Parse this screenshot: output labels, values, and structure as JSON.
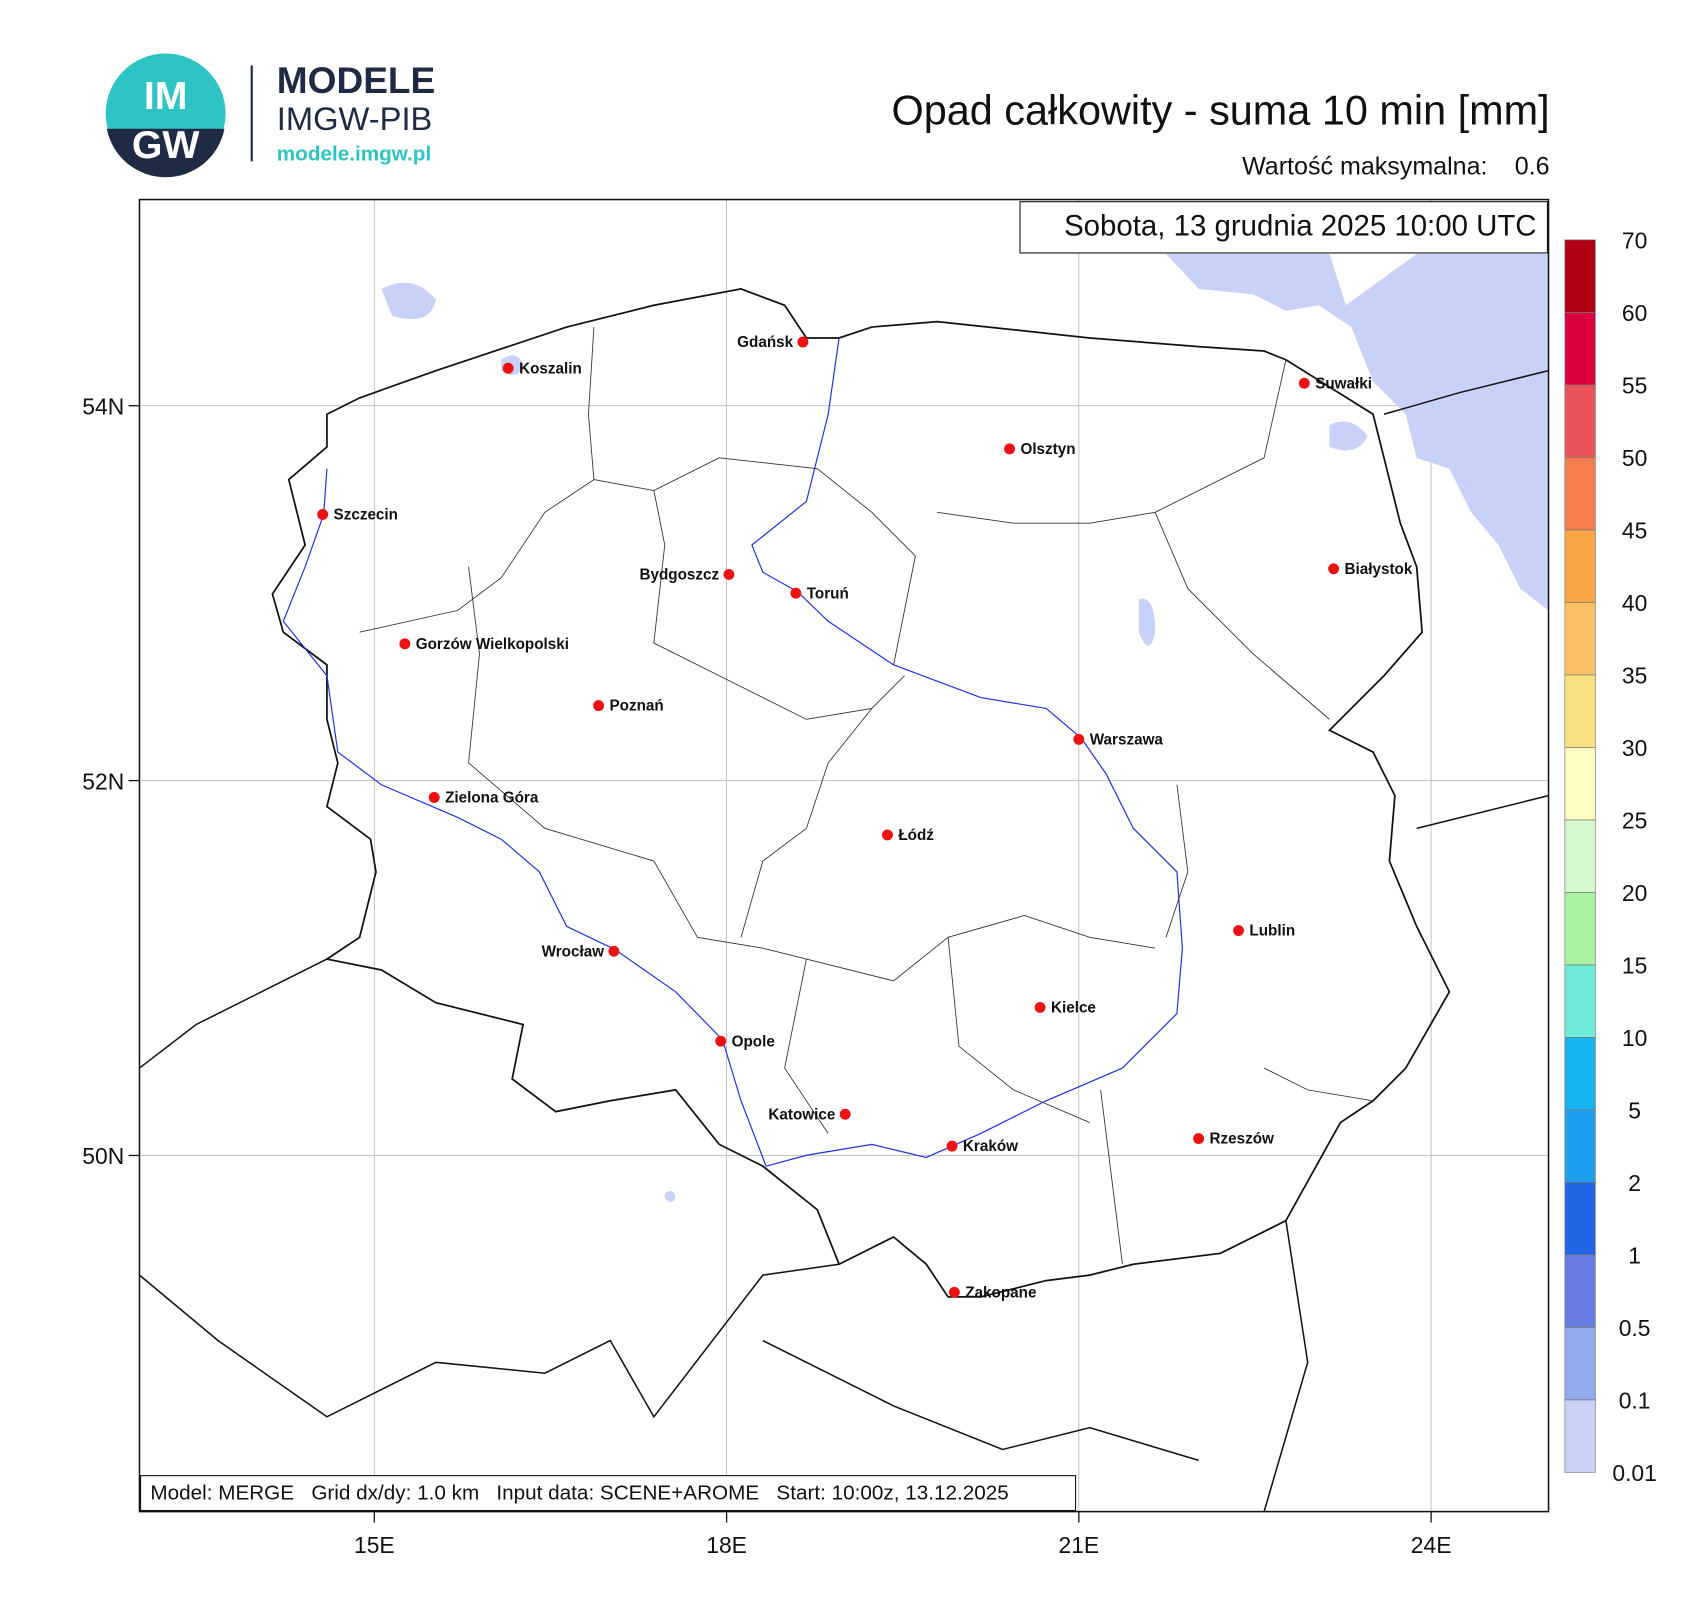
{
  "header": {
    "logo_top": "IM",
    "logo_bottom": "GW",
    "brand": "MODELE",
    "brand_sub": "IMGW-PIB",
    "url": "modele.imgw.pl",
    "title": "Opad całkowity - suma 10 min [mm]",
    "max_label": "Wartość maksymalna:",
    "max_value": 0.6
  },
  "map": {
    "date": "Sobota, 13 grudnia 2025 10:00 UTC",
    "footer": "Model: MERGE   Grid dx/dy: 1.0 km   Input data: SCENE+AROME   Start: 10:00z, 13.12.2025",
    "xlim": [
      13,
      25
    ],
    "ylim": [
      48.1,
      55.1
    ],
    "xticks": [
      {
        "value": 15,
        "label": "15E"
      },
      {
        "value": 18,
        "label": "18E"
      },
      {
        "value": 21,
        "label": "21E"
      },
      {
        "value": 24,
        "label": "24E"
      }
    ],
    "yticks": [
      {
        "value": 54,
        "label": "54N"
      },
      {
        "value": 52,
        "label": "52N"
      },
      {
        "value": 50,
        "label": "50N"
      }
    ],
    "grid": true,
    "cities": [
      {
        "name": "Gdańsk",
        "lon": 18.65,
        "lat": 54.34,
        "label_side": "left"
      },
      {
        "name": "Koszalin",
        "lon": 16.14,
        "lat": 54.2
      },
      {
        "name": "Suwałki",
        "lon": 22.92,
        "lat": 54.12
      },
      {
        "name": "Olsztyn",
        "lon": 20.41,
        "lat": 53.77
      },
      {
        "name": "Szczecin",
        "lon": 14.56,
        "lat": 53.42
      },
      {
        "name": "Białystok",
        "lon": 23.17,
        "lat": 53.13
      },
      {
        "name": "Bydgoszcz",
        "lon": 18.02,
        "lat": 53.1,
        "label_side": "left"
      },
      {
        "name": "Toruń",
        "lon": 18.59,
        "lat": 53.0
      },
      {
        "name": "Gorzów Wielkopolski",
        "lon": 15.26,
        "lat": 52.73
      },
      {
        "name": "Poznań",
        "lon": 16.91,
        "lat": 52.4
      },
      {
        "name": "Warszawa",
        "lon": 21.0,
        "lat": 52.22
      },
      {
        "name": "Zielona Góra",
        "lon": 15.51,
        "lat": 51.91
      },
      {
        "name": "Łódź",
        "lon": 19.37,
        "lat": 51.71
      },
      {
        "name": "Lublin",
        "lon": 22.36,
        "lat": 51.2
      },
      {
        "name": "Wrocław",
        "lon": 17.04,
        "lat": 51.09,
        "label_side": "left"
      },
      {
        "name": "Kielce",
        "lon": 20.67,
        "lat": 50.79
      },
      {
        "name": "Opole",
        "lon": 17.95,
        "lat": 50.61
      },
      {
        "name": "Katowice",
        "lon": 19.01,
        "lat": 50.22,
        "label_side": "left"
      },
      {
        "name": "Rzeszów",
        "lon": 22.02,
        "lat": 50.09
      },
      {
        "name": "Kraków",
        "lon": 19.92,
        "lat": 50.05
      },
      {
        "name": "Zakopane",
        "lon": 19.94,
        "lat": 49.27
      }
    ]
  },
  "legend": {
    "levels": [
      0.01,
      0.1,
      0.5,
      1,
      2,
      5,
      10,
      15,
      20,
      25,
      30,
      35,
      40,
      45,
      50,
      55,
      60,
      70
    ],
    "colors": [
      "#c8d1f7",
      "#92abee",
      "#6a7de2",
      "#2266e6",
      "#1c9ff0",
      "#17b4f2",
      "#6eead9",
      "#aaf2a2",
      "#d3f8cb",
      "#fdfcc2",
      "#f8e07e",
      "#fcc064",
      "#fca546",
      "#f67e4c",
      "#e95357",
      "#d9003d",
      "#b00012",
      "#7a0000"
    ]
  }
}
